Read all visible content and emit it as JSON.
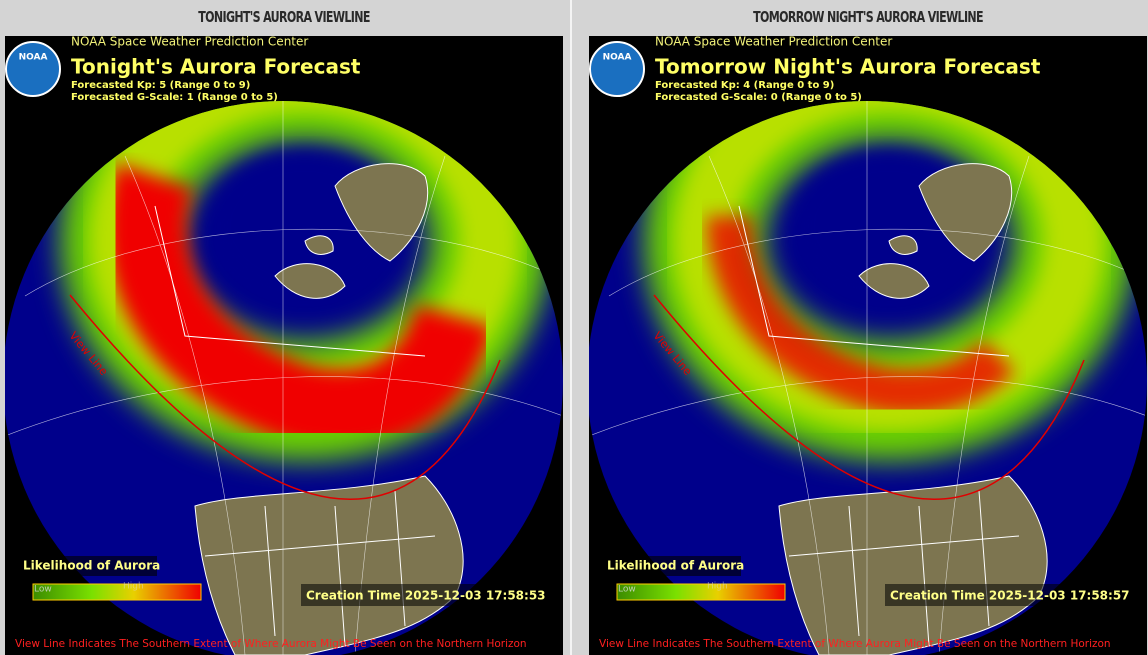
{
  "panels": [
    {
      "heading": "TONIGHT'S AURORA VIEWLINE",
      "logo": "NOAA",
      "source": "NOAA Space Weather Prediction Center",
      "title": "Tonight's Aurora Forecast",
      "kp": "Forecasted Kp: 5 (Range 0 to 9)",
      "gscale": "Forecasted G-Scale: 1 (Range 0 to 5)",
      "view_line_label": "View Line",
      "legend_title": "Likelihood of Aurora",
      "legend_low": "Low",
      "legend_high": "High",
      "creation_time": "Creation Time 2025-12-03 17:58:53",
      "footnote": "View Line Indicates The Southern Extent of Where Aurora Might Be Seen on the Northern Horizon"
    },
    {
      "heading": "TOMORROW NIGHT'S AURORA VIEWLINE",
      "logo": "NOAA",
      "source": "NOAA Space Weather Prediction Center",
      "title": "Tomorrow Night's Aurora Forecast",
      "kp": "Forecasted Kp: 4 (Range 0 to 9)",
      "gscale": "Forecasted G-Scale: 0 (Range 0 to 5)",
      "view_line_label": "View Line",
      "legend_title": "Likelihood of Aurora",
      "legend_low": "Low",
      "legend_high": "High",
      "creation_time": "Creation Time 2025-12-03 17:58:57",
      "footnote": "View Line Indicates The Southern Extent of Where Aurora Might Be Seen on the Northern Horizon"
    }
  ]
}
